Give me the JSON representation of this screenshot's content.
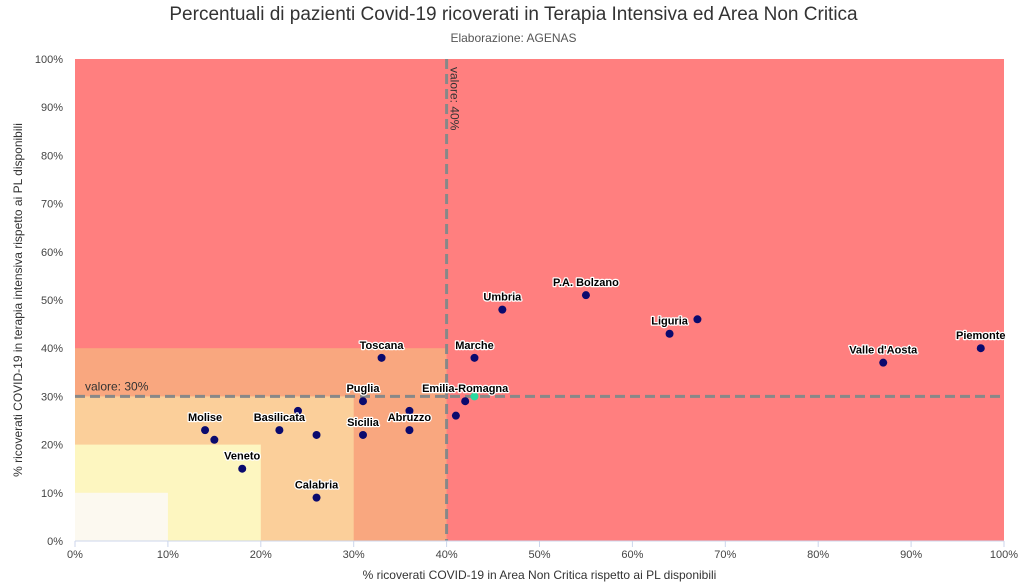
{
  "chart_data": {
    "type": "scatter",
    "title": "Percentuali di pazienti Covid-19 ricoverati in Terapia Intensiva ed Area Non Critica",
    "subtitle": "Elaborazione: AGENAS",
    "xlabel": "% ricoverati COVID-19 in Area Non Critica rispetto ai PL disponibili",
    "ylabel": "% ricoverati COVID-19 in terapia intensiva rispetto ai PL disponibili",
    "xlim": [
      0,
      100
    ],
    "ylim": [
      0,
      100
    ],
    "x_ticks": [
      "0%",
      "10%",
      "20%",
      "30%",
      "40%",
      "50%",
      "60%",
      "70%",
      "80%",
      "90%",
      "100%"
    ],
    "y_ticks": [
      "0%",
      "10%",
      "20%",
      "30%",
      "40%",
      "50%",
      "60%",
      "70%",
      "80%",
      "90%",
      "100%"
    ],
    "grid": false,
    "legend": "none",
    "zones": [
      {
        "x": [
          0,
          100
        ],
        "y": [
          0,
          100
        ],
        "color": "#ff7f7f"
      },
      {
        "x": [
          0,
          40
        ],
        "y": [
          0,
          40
        ],
        "color": "#f9a77f"
      },
      {
        "x": [
          0,
          30
        ],
        "y": [
          0,
          30
        ],
        "color": "#fbcf9a"
      },
      {
        "x": [
          0,
          20
        ],
        "y": [
          0,
          20
        ],
        "color": "#fdf6c0"
      },
      {
        "x": [
          0,
          10
        ],
        "y": [
          0,
          10
        ],
        "color": "#fcf9f0"
      }
    ],
    "reference_lines": [
      {
        "axis": "x",
        "value": 40,
        "label": "valore: 40%"
      },
      {
        "axis": "y",
        "value": 30,
        "label": "valore: 30%"
      }
    ],
    "colors": {
      "point": "#0a0a6e",
      "highlight": "#2ad9a0",
      "reference_line": "#888888"
    },
    "points": [
      {
        "label": "Piemonte",
        "x": 97.5,
        "y": 40
      },
      {
        "label": "Valle d'Aosta",
        "x": 87,
        "y": 37
      },
      {
        "label": "Liguria",
        "x": 64,
        "y": 43
      },
      {
        "label": "",
        "x": 67,
        "y": 46
      },
      {
        "label": "P.A. Bolzano",
        "x": 55,
        "y": 51
      },
      {
        "label": "Umbria",
        "x": 46,
        "y": 48
      },
      {
        "label": "Marche",
        "x": 43,
        "y": 38
      },
      {
        "label": "Emilia-Romagna",
        "x": 42,
        "y": 29
      },
      {
        "label": "",
        "x": 43,
        "y": 30,
        "highlight": true
      },
      {
        "label": "",
        "x": 41,
        "y": 26
      },
      {
        "label": "Toscana",
        "x": 33,
        "y": 38
      },
      {
        "label": "Puglia",
        "x": 31,
        "y": 29
      },
      {
        "label": "Sicilia",
        "x": 31,
        "y": 22
      },
      {
        "label": "Abruzzo",
        "x": 36,
        "y": 23
      },
      {
        "label": "",
        "x": 36,
        "y": 27
      },
      {
        "label": "Basilicata",
        "x": 22,
        "y": 23
      },
      {
        "label": "",
        "x": 24,
        "y": 27
      },
      {
        "label": "",
        "x": 26,
        "y": 22
      },
      {
        "label": "Molise",
        "x": 14,
        "y": 23
      },
      {
        "label": "",
        "x": 15,
        "y": 21
      },
      {
        "label": "Veneto",
        "x": 18,
        "y": 15
      },
      {
        "label": "Calabria",
        "x": 26,
        "y": 9
      }
    ]
  }
}
